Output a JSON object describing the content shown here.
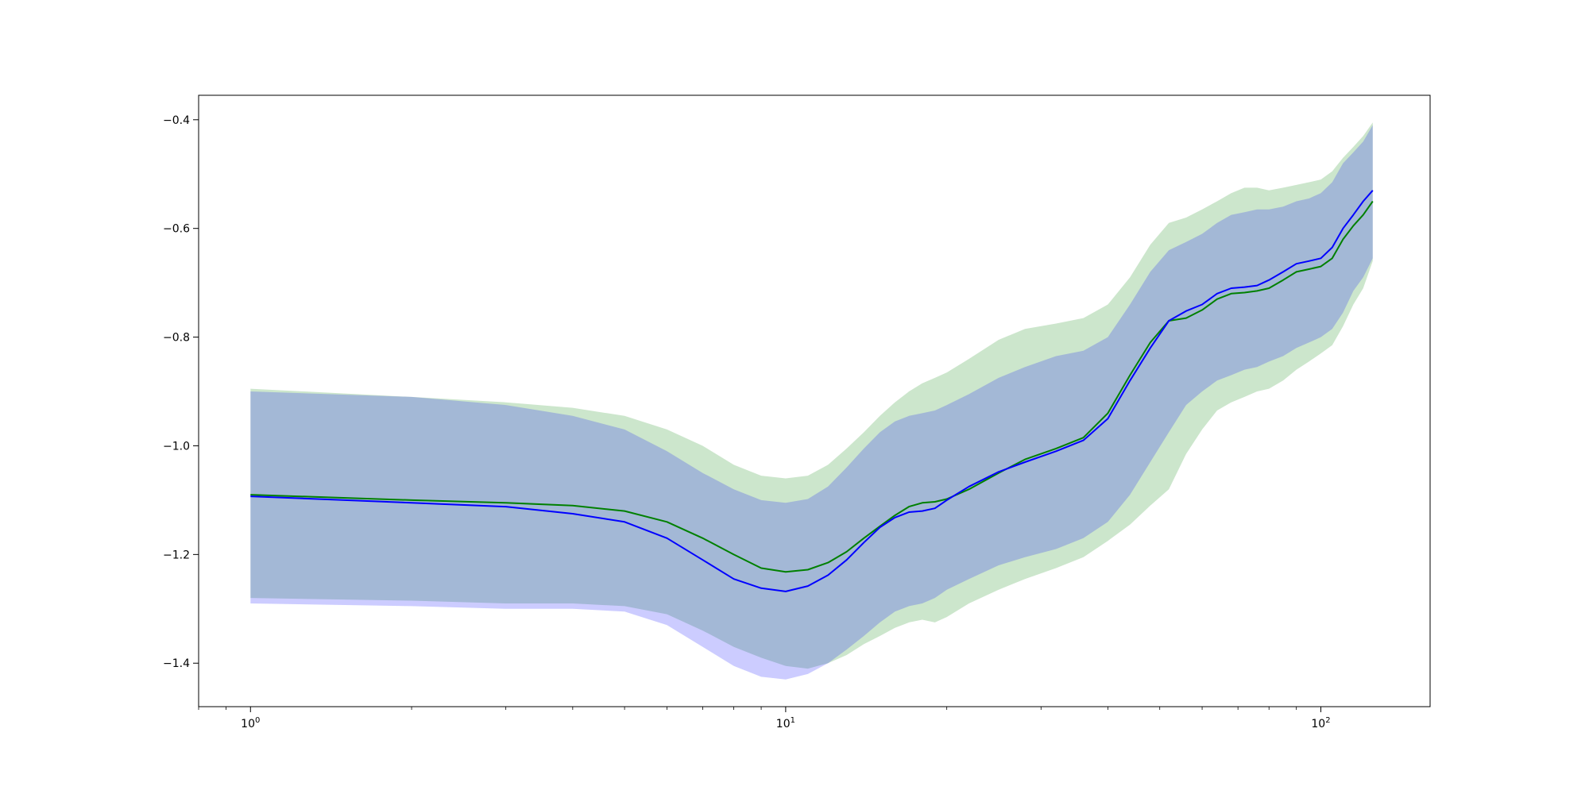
{
  "chart_data": {
    "type": "area",
    "x_scale": "log",
    "xlim": [
      0.8,
      160
    ],
    "ylim": [
      -1.48,
      -0.355
    ],
    "x_ticks": [
      {
        "value": 1,
        "label_base": "10",
        "label_exp": "0"
      },
      {
        "value": 10,
        "label_base": "10",
        "label_exp": "1"
      },
      {
        "value": 100,
        "label_base": "10",
        "label_exp": "2"
      }
    ],
    "y_ticks": [
      {
        "value": -0.4,
        "label": "−0.4"
      },
      {
        "value": -0.6,
        "label": "−0.6"
      },
      {
        "value": -0.8,
        "label": "−0.8"
      },
      {
        "value": -1.0,
        "label": "−1.0"
      },
      {
        "value": -1.2,
        "label": "−1.2"
      },
      {
        "value": -1.4,
        "label": "−1.4"
      }
    ],
    "grid": false,
    "series": [
      {
        "color": "#008000",
        "fill_color": "#008000",
        "fill_opacity": 0.2,
        "x": [
          1,
          2,
          3,
          4,
          5,
          6,
          7,
          8,
          9,
          10,
          11,
          12,
          13,
          14,
          15,
          16,
          17,
          18,
          19,
          20,
          22,
          25,
          28,
          32,
          36,
          40,
          44,
          48,
          52,
          56,
          60,
          64,
          68,
          72,
          76,
          80,
          85,
          90,
          95,
          100,
          105,
          110,
          115,
          120,
          125
        ],
        "mean": [
          -1.09,
          -1.1,
          -1.105,
          -1.11,
          -1.12,
          -1.14,
          -1.17,
          -1.2,
          -1.225,
          -1.232,
          -1.228,
          -1.215,
          -1.195,
          -1.17,
          -1.148,
          -1.128,
          -1.112,
          -1.105,
          -1.103,
          -1.098,
          -1.08,
          -1.05,
          -1.025,
          -1.005,
          -0.985,
          -0.94,
          -0.87,
          -0.81,
          -0.77,
          -0.765,
          -0.75,
          -0.73,
          -0.72,
          -0.718,
          -0.715,
          -0.71,
          -0.695,
          -0.68,
          -0.675,
          -0.67,
          -0.655,
          -0.62,
          -0.595,
          -0.575,
          -0.55
        ],
        "upper": [
          -0.895,
          -0.91,
          -0.92,
          -0.93,
          -0.945,
          -0.97,
          -1.0,
          -1.035,
          -1.055,
          -1.06,
          -1.055,
          -1.035,
          -1.005,
          -0.975,
          -0.945,
          -0.92,
          -0.9,
          -0.885,
          -0.875,
          -0.865,
          -0.84,
          -0.805,
          -0.785,
          -0.775,
          -0.765,
          -0.74,
          -0.69,
          -0.63,
          -0.59,
          -0.58,
          -0.565,
          -0.55,
          -0.535,
          -0.525,
          -0.525,
          -0.53,
          -0.525,
          -0.52,
          -0.515,
          -0.51,
          -0.495,
          -0.47,
          -0.45,
          -0.43,
          -0.405
        ],
        "lower": [
          -1.28,
          -1.285,
          -1.29,
          -1.29,
          -1.295,
          -1.31,
          -1.34,
          -1.37,
          -1.39,
          -1.405,
          -1.41,
          -1.4,
          -1.385,
          -1.365,
          -1.35,
          -1.335,
          -1.325,
          -1.32,
          -1.325,
          -1.315,
          -1.29,
          -1.265,
          -1.245,
          -1.225,
          -1.205,
          -1.175,
          -1.145,
          -1.11,
          -1.08,
          -1.015,
          -0.97,
          -0.935,
          -0.92,
          -0.91,
          -0.9,
          -0.895,
          -0.88,
          -0.86,
          -0.845,
          -0.83,
          -0.815,
          -0.78,
          -0.74,
          -0.71,
          -0.66
        ]
      },
      {
        "color": "#0000ff",
        "fill_color": "#0000ff",
        "fill_opacity": 0.2,
        "x": [
          1,
          2,
          3,
          4,
          5,
          6,
          7,
          8,
          9,
          10,
          11,
          12,
          13,
          14,
          15,
          16,
          17,
          18,
          19,
          20,
          22,
          25,
          28,
          32,
          36,
          40,
          44,
          48,
          52,
          56,
          60,
          64,
          68,
          72,
          76,
          80,
          85,
          90,
          95,
          100,
          105,
          110,
          115,
          120,
          125
        ],
        "mean": [
          -1.093,
          -1.105,
          -1.112,
          -1.125,
          -1.14,
          -1.17,
          -1.21,
          -1.245,
          -1.262,
          -1.268,
          -1.258,
          -1.238,
          -1.21,
          -1.178,
          -1.15,
          -1.132,
          -1.122,
          -1.12,
          -1.115,
          -1.1,
          -1.075,
          -1.048,
          -1.03,
          -1.01,
          -0.99,
          -0.95,
          -0.88,
          -0.82,
          -0.77,
          -0.752,
          -0.74,
          -0.72,
          -0.71,
          -0.708,
          -0.705,
          -0.695,
          -0.68,
          -0.665,
          -0.66,
          -0.655,
          -0.635,
          -0.6,
          -0.575,
          -0.55,
          -0.53
        ],
        "upper": [
          -0.9,
          -0.91,
          -0.925,
          -0.945,
          -0.97,
          -1.01,
          -1.05,
          -1.08,
          -1.1,
          -1.105,
          -1.098,
          -1.075,
          -1.04,
          -1.005,
          -0.975,
          -0.955,
          -0.945,
          -0.94,
          -0.935,
          -0.925,
          -0.905,
          -0.875,
          -0.855,
          -0.835,
          -0.825,
          -0.8,
          -0.74,
          -0.68,
          -0.64,
          -0.625,
          -0.61,
          -0.59,
          -0.575,
          -0.57,
          -0.565,
          -0.565,
          -0.56,
          -0.55,
          -0.545,
          -0.535,
          -0.515,
          -0.48,
          -0.46,
          -0.44,
          -0.41
        ],
        "lower": [
          -1.29,
          -1.295,
          -1.3,
          -1.3,
          -1.305,
          -1.33,
          -1.37,
          -1.405,
          -1.425,
          -1.43,
          -1.42,
          -1.4,
          -1.375,
          -1.35,
          -1.325,
          -1.305,
          -1.295,
          -1.29,
          -1.28,
          -1.265,
          -1.245,
          -1.22,
          -1.205,
          -1.19,
          -1.17,
          -1.14,
          -1.09,
          -1.03,
          -0.975,
          -0.925,
          -0.9,
          -0.88,
          -0.87,
          -0.86,
          -0.855,
          -0.845,
          -0.835,
          -0.82,
          -0.81,
          -0.8,
          -0.785,
          -0.755,
          -0.715,
          -0.69,
          -0.655
        ]
      }
    ]
  }
}
